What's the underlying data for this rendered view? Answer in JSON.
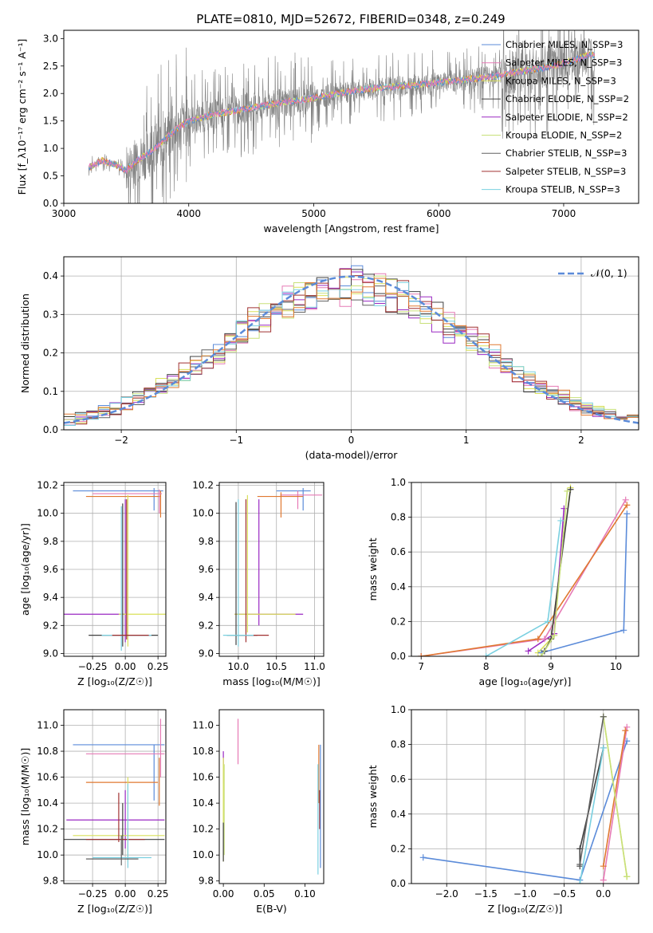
{
  "figure": {
    "title": "PLATE=0810, MJD=52672, FIBERID=0348, z=0.249"
  },
  "palette": {
    "spectrum": "#808080",
    "gauss": "#5b8bd9",
    "series_colors": [
      "#5b8bd9",
      "#e67ab5",
      "#d9e05a",
      "#404040",
      "#9a28c2",
      "#c8e07a",
      "#606060",
      "#a03030",
      "#7ad0e0",
      "#e07830"
    ]
  },
  "chart_data": [
    {
      "id": "spectrum",
      "type": "line",
      "title": "PLATE=0810, MJD=52672, FIBERID=0348, z=0.249",
      "xlabel": "wavelength [Angstrom, rest frame]",
      "ylabel": "Flux [f_λ10⁻¹⁷ erg cm⁻² s⁻¹ A⁻¹]",
      "xlim": [
        3000,
        7600
      ],
      "ylim": [
        0,
        3.15
      ],
      "x_ticks": [
        "3000",
        "4000",
        "5000",
        "6000",
        "7000"
      ],
      "y_ticks": [
        "0.0",
        "0.5",
        "1.0",
        "1.5",
        "2.0",
        "2.5",
        "3.0"
      ],
      "grid": false,
      "legend_position": "top-right",
      "legend": [
        "Chabrier MILES, N_SSP=3",
        "Salpeter MILES, N_SSP=3",
        "Kroupa MILES, N_SSP=3",
        "Chabrier ELODIE, N_SSP=2",
        "Salpeter ELODIE, N_SSP=2",
        "Kroupa ELODIE, N_SSP=2",
        "Chabrier STELIB, N_SSP=3",
        "Salpeter STELIB, N_SSP=3",
        "Kroupa STELIB, N_SSP=3"
      ],
      "model_x": [
        3200,
        3300,
        3400,
        3500,
        3600,
        3700,
        3800,
        3900,
        4000,
        4200,
        4400,
        4600,
        4800,
        5000,
        5200,
        5400,
        5600,
        5800,
        6000,
        6200,
        6400,
        6600,
        6800,
        7000,
        7200
      ],
      "model_y": [
        0.65,
        0.78,
        0.72,
        0.6,
        0.8,
        0.95,
        1.15,
        1.35,
        1.5,
        1.62,
        1.7,
        1.78,
        1.85,
        1.92,
        2.0,
        2.07,
        2.12,
        2.15,
        2.2,
        2.25,
        2.3,
        2.38,
        2.45,
        2.55,
        2.7
      ]
    },
    {
      "id": "residuals",
      "type": "bar",
      "xlabel": "(data-model)/error",
      "ylabel": "Normed distribution",
      "xlim": [
        -2.5,
        2.5
      ],
      "ylim": [
        0,
        0.45
      ],
      "x_ticks": [
        "−2",
        "−1",
        "0",
        "1",
        "2"
      ],
      "y_ticks": [
        "0.0",
        "0.1",
        "0.2",
        "0.3",
        "0.4"
      ],
      "grid": true,
      "legend_position": "top-right",
      "legend": [
        "𝒩(0, 1)"
      ],
      "bin_width": 0.1
    },
    {
      "id": "age-vs-z",
      "type": "scatter",
      "xlabel": "Z [log₁₀(Z/Z☉)]",
      "ylabel": "age  [log₁₀(age/yr)]",
      "xlim": [
        -0.47,
        0.31
      ],
      "ylim": [
        8.98,
        10.22
      ],
      "x_ticks": [
        "−0.25",
        "0.00",
        "0.25"
      ],
      "y_ticks": [
        "9.0",
        "9.2",
        "9.4",
        "9.6",
        "9.8",
        "10.0",
        "10.2"
      ],
      "grid": true
    },
    {
      "id": "age-vs-mass",
      "type": "scatter",
      "xlabel": "mass [log₁₀(M/M☉)]",
      "ylabel": "",
      "xlim": [
        9.75,
        11.12
      ],
      "ylim": [
        8.98,
        10.22
      ],
      "x_ticks": [
        "10.0",
        "10.5",
        "11.0"
      ],
      "y_ticks": [
        "9.0",
        "9.2",
        "9.4",
        "9.6",
        "9.8",
        "10.0",
        "10.2"
      ],
      "grid": true
    },
    {
      "id": "weight-vs-age",
      "type": "line",
      "xlabel": "age  [log₁₀(age/yr)]",
      "ylabel": "mass weight",
      "xlim": [
        6.85,
        10.35
      ],
      "ylim": [
        0,
        1.0
      ],
      "x_ticks": [
        "7",
        "8",
        "9",
        "10"
      ],
      "y_ticks": [
        "0.0",
        "0.2",
        "0.4",
        "0.6",
        "0.8",
        "1.0"
      ],
      "grid": true,
      "series": [
        {
          "x": [
            8.65,
            9.05,
            9.2
          ],
          "y": [
            0.03,
            0.13,
            0.85
          ]
        },
        {
          "x": [
            7.0,
            8.9,
            10.15
          ],
          "y": [
            0.0,
            0.1,
            0.9
          ]
        },
        {
          "x": [
            7.0,
            8.8,
            10.17
          ],
          "y": [
            0.0,
            0.1,
            0.87
          ]
        },
        {
          "x": [
            8.8,
            9.0,
            9.3
          ],
          "y": [
            0.02,
            0.1,
            0.97
          ]
        },
        {
          "x": [
            8.0,
            8.95,
            9.15
          ],
          "y": [
            0.0,
            0.2,
            0.78
          ]
        },
        {
          "x": [
            8.85,
            10.12,
            10.17
          ],
          "y": [
            0.02,
            0.15,
            0.82
          ]
        },
        {
          "x": [
            8.9,
            9.0,
            9.3
          ],
          "y": [
            0.03,
            0.1,
            0.96
          ]
        },
        {
          "x": [
            8.85,
            9.05,
            9.25
          ],
          "y": [
            0.0,
            0.12,
            0.95
          ]
        }
      ]
    },
    {
      "id": "mass-vs-z",
      "type": "scatter",
      "xlabel": "Z [log₁₀(Z/Z☉)]",
      "ylabel": "mass [log₁₀(M/M☉)]",
      "xlim": [
        -0.47,
        0.31
      ],
      "ylim": [
        9.78,
        11.12
      ],
      "x_ticks": [
        "−0.25",
        "0.00",
        "0.25"
      ],
      "y_ticks": [
        "9.8",
        "10.0",
        "10.2",
        "10.4",
        "10.6",
        "10.8",
        "11.0"
      ],
      "grid": true
    },
    {
      "id": "mass-vs-ebv",
      "type": "scatter",
      "xlabel": "E(B-V)",
      "ylabel": "",
      "xlim": [
        -0.005,
        0.123
      ],
      "ylim": [
        9.78,
        11.12
      ],
      "x_ticks": [
        "0.00",
        "0.05",
        "0.10"
      ],
      "y_ticks": [
        "9.8",
        "10.0",
        "10.2",
        "10.4",
        "10.6",
        "10.8",
        "11.0"
      ],
      "grid": false
    },
    {
      "id": "weight-vs-z",
      "type": "line",
      "xlabel": "Z [log₁₀(Z/Z☉)]",
      "ylabel": "mass weight",
      "xlim": [
        -2.45,
        0.45
      ],
      "ylim": [
        0,
        1.0
      ],
      "x_ticks": [
        "−2.0",
        "−1.5",
        "−1.0",
        "−0.5",
        "0.0"
      ],
      "y_ticks": [
        "0.0",
        "0.2",
        "0.4",
        "0.6",
        "0.8",
        "1.0"
      ],
      "grid": true,
      "series": [
        {
          "x": [
            -2.3,
            -0.3,
            0.3
          ],
          "y": [
            0.15,
            0.02,
            0.82
          ]
        },
        {
          "x": [
            0.0,
            0.3
          ],
          "y": [
            0.02,
            0.9
          ]
        },
        {
          "x": [
            0.0,
            0.28
          ],
          "y": [
            0.1,
            0.88
          ]
        },
        {
          "x": [
            -0.3,
            -0.3,
            0.0
          ],
          "y": [
            0.1,
            0.2,
            0.78
          ]
        },
        {
          "x": [
            0.0,
            0.3
          ],
          "y": [
            0.96,
            0.04
          ]
        },
        {
          "x": [
            0.0,
            0.3,
            0.3
          ],
          "y": [
            0.96,
            0.04,
            0.04
          ]
        },
        {
          "x": [
            -0.3,
            0.0
          ],
          "y": [
            0.11,
            0.96
          ]
        },
        {
          "x": [
            -0.3,
            0.0
          ],
          "y": [
            0.0,
            0.78
          ]
        }
      ]
    }
  ]
}
